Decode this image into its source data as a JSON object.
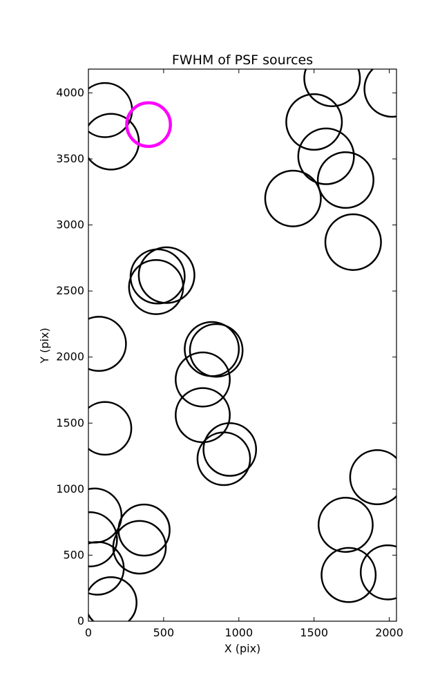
{
  "chart_data": {
    "type": "scatter",
    "title": "FWHM of PSF sources",
    "xlabel": "X (pix)",
    "ylabel": "Y (pix)",
    "xlim": [
      0,
      2048
    ],
    "ylim": [
      0,
      4180
    ],
    "xticks": [
      0,
      500,
      1000,
      1500,
      2000
    ],
    "yticks": [
      0,
      500,
      1000,
      1500,
      2000,
      2500,
      3000,
      3500,
      4000
    ],
    "grid": false,
    "marker": "open-circle",
    "series": [
      {
        "color": "#000000",
        "points": [
          {
            "x": 110,
            "y": 3870,
            "r": 180
          },
          {
            "x": 150,
            "y": 3630,
            "r": 185
          },
          {
            "x": 1620,
            "y": 4110,
            "r": 185
          },
          {
            "x": 2020,
            "y": 4030,
            "r": 185
          },
          {
            "x": 1500,
            "y": 3780,
            "r": 185
          },
          {
            "x": 1580,
            "y": 3520,
            "r": 185
          },
          {
            "x": 1710,
            "y": 3340,
            "r": 185
          },
          {
            "x": 1360,
            "y": 3200,
            "r": 185
          },
          {
            "x": 1760,
            "y": 2870,
            "r": 185
          },
          {
            "x": 520,
            "y": 2620,
            "r": 185
          },
          {
            "x": 460,
            "y": 2610,
            "r": 180
          },
          {
            "x": 450,
            "y": 2530,
            "r": 180
          },
          {
            "x": 70,
            "y": 2100,
            "r": 180
          },
          {
            "x": 820,
            "y": 2060,
            "r": 180
          },
          {
            "x": 850,
            "y": 2050,
            "r": 175
          },
          {
            "x": 760,
            "y": 1830,
            "r": 180
          },
          {
            "x": 110,
            "y": 1460,
            "r": 175
          },
          {
            "x": 760,
            "y": 1560,
            "r": 180
          },
          {
            "x": 940,
            "y": 1300,
            "r": 175
          },
          {
            "x": 900,
            "y": 1230,
            "r": 175
          },
          {
            "x": 1920,
            "y": 1090,
            "r": 180
          },
          {
            "x": 40,
            "y": 800,
            "r": 180
          },
          {
            "x": 370,
            "y": 690,
            "r": 170
          },
          {
            "x": 340,
            "y": 560,
            "r": 175
          },
          {
            "x": 10,
            "y": 620,
            "r": 180
          },
          {
            "x": 1710,
            "y": 730,
            "r": 180
          },
          {
            "x": 60,
            "y": 400,
            "r": 175
          },
          {
            "x": 1730,
            "y": 350,
            "r": 180
          },
          {
            "x": 1990,
            "y": 370,
            "r": 180
          },
          {
            "x": 150,
            "y": 140,
            "r": 170
          }
        ]
      },
      {
        "color": "#ff00ff",
        "points": [
          {
            "x": 400,
            "y": 3760,
            "r": 145
          }
        ]
      }
    ]
  }
}
